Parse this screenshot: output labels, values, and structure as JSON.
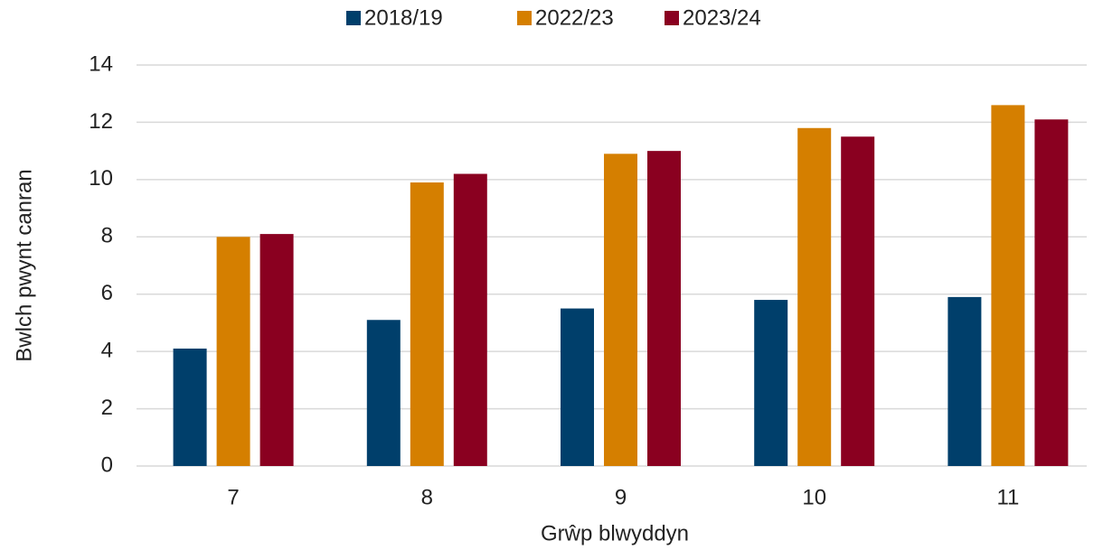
{
  "chart_data": {
    "type": "bar",
    "categories": [
      "7",
      "8",
      "9",
      "10",
      "11"
    ],
    "series": [
      {
        "name": "2018/19",
        "color": "#003f6b",
        "values": [
          4.1,
          5.1,
          5.5,
          5.8,
          5.9
        ]
      },
      {
        "name": "2022/23",
        "color": "#d57f00",
        "values": [
          8.0,
          9.9,
          10.9,
          11.8,
          12.6
        ]
      },
      {
        "name": "2023/24",
        "color": "#8a0020",
        "values": [
          8.1,
          10.2,
          11.0,
          11.5,
          12.1
        ]
      }
    ],
    "ylim": [
      0,
      14
    ],
    "yticks": [
      0,
      2,
      4,
      6,
      8,
      10,
      12,
      14
    ],
    "grid": true,
    "xlabel": "Grŵp blwyddyn",
    "ylabel": "Bwlch pwynt canran",
    "legend": "top"
  }
}
